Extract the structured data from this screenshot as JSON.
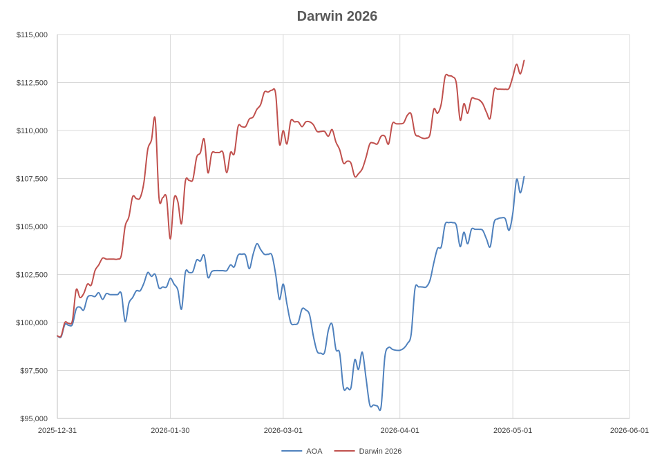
{
  "chart_data": {
    "type": "line",
    "title": "Darwin 2026",
    "xlabel": "",
    "ylabel": "",
    "xlim": [
      "2025-12-31",
      "2026-06-01"
    ],
    "ylim": [
      95000,
      115000
    ],
    "x_ticks": [
      "2025-12-31",
      "2026-01-30",
      "2026-03-01",
      "2026-04-01",
      "2026-05-01",
      "2026-06-01"
    ],
    "y_ticks": [
      "$95,000",
      "$97,500",
      "$100,000",
      "$102,500",
      "$105,000",
      "$107,500",
      "$110,000",
      "$112,500",
      "$115,000"
    ],
    "y_tick_values": [
      95000,
      97500,
      100000,
      102500,
      105000,
      107500,
      110000,
      112500,
      115000
    ],
    "grid": true,
    "legend_position": "bottom",
    "series": [
      {
        "name": "AOA",
        "color": "#4f81bd",
        "points": [
          [
            "2025-12-31",
            99300
          ],
          [
            "2026-01-01",
            99250
          ],
          [
            "2026-01-02",
            99900
          ],
          [
            "2026-01-03",
            99850
          ],
          [
            "2026-01-04",
            99900
          ],
          [
            "2026-01-05",
            100700
          ],
          [
            "2026-01-06",
            100800
          ],
          [
            "2026-01-07",
            100650
          ],
          [
            "2026-01-08",
            101300
          ],
          [
            "2026-01-09",
            101400
          ],
          [
            "2026-01-10",
            101350
          ],
          [
            "2026-01-11",
            101550
          ],
          [
            "2026-01-12",
            101200
          ],
          [
            "2026-01-13",
            101500
          ],
          [
            "2026-01-14",
            101450
          ],
          [
            "2026-01-15",
            101450
          ],
          [
            "2026-01-16",
            101450
          ],
          [
            "2026-01-17",
            101500
          ],
          [
            "2026-01-18",
            100050
          ],
          [
            "2026-01-19",
            101000
          ],
          [
            "2026-01-20",
            101300
          ],
          [
            "2026-01-21",
            101650
          ],
          [
            "2026-01-22",
            101650
          ],
          [
            "2026-01-23",
            102050
          ],
          [
            "2026-01-24",
            102600
          ],
          [
            "2026-01-25",
            102400
          ],
          [
            "2026-01-26",
            102500
          ],
          [
            "2026-01-27",
            101800
          ],
          [
            "2026-01-28",
            101850
          ],
          [
            "2026-01-29",
            101850
          ],
          [
            "2026-01-30",
            102300
          ],
          [
            "2026-01-31",
            102000
          ],
          [
            "2026-02-01",
            101700
          ],
          [
            "2026-02-02",
            100700
          ],
          [
            "2026-02-03",
            102600
          ],
          [
            "2026-02-04",
            102600
          ],
          [
            "2026-02-05",
            102650
          ],
          [
            "2026-02-06",
            103250
          ],
          [
            "2026-02-07",
            103200
          ],
          [
            "2026-02-08",
            103500
          ],
          [
            "2026-02-09",
            102350
          ],
          [
            "2026-02-10",
            102650
          ],
          [
            "2026-02-11",
            102700
          ],
          [
            "2026-02-12",
            102700
          ],
          [
            "2026-02-13",
            102700
          ],
          [
            "2026-02-14",
            102700
          ],
          [
            "2026-02-15",
            103000
          ],
          [
            "2026-02-16",
            102900
          ],
          [
            "2026-02-17",
            103500
          ],
          [
            "2026-02-18",
            103550
          ],
          [
            "2026-02-19",
            103500
          ],
          [
            "2026-02-20",
            102800
          ],
          [
            "2026-02-21",
            103550
          ],
          [
            "2026-02-22",
            104100
          ],
          [
            "2026-02-23",
            103800
          ],
          [
            "2026-02-24",
            103550
          ],
          [
            "2026-02-25",
            103550
          ],
          [
            "2026-02-26",
            103500
          ],
          [
            "2026-02-27",
            102500
          ],
          [
            "2026-02-28",
            101200
          ],
          [
            "2026-03-01",
            102000
          ],
          [
            "2026-03-02",
            100950
          ],
          [
            "2026-03-03",
            100000
          ],
          [
            "2026-03-04",
            99900
          ],
          [
            "2026-03-05",
            100000
          ],
          [
            "2026-03-06",
            100700
          ],
          [
            "2026-03-07",
            100650
          ],
          [
            "2026-03-08",
            100400
          ],
          [
            "2026-03-09",
            99300
          ],
          [
            "2026-03-10",
            98500
          ],
          [
            "2026-03-11",
            98400
          ],
          [
            "2026-03-12",
            98450
          ],
          [
            "2026-03-13",
            99600
          ],
          [
            "2026-03-14",
            99900
          ],
          [
            "2026-03-15",
            98600
          ],
          [
            "2026-03-16",
            98400
          ],
          [
            "2026-03-17",
            96600
          ],
          [
            "2026-03-18",
            96600
          ],
          [
            "2026-03-19",
            96600
          ],
          [
            "2026-03-20",
            98050
          ],
          [
            "2026-03-21",
            97550
          ],
          [
            "2026-03-22",
            98450
          ],
          [
            "2026-03-23",
            97100
          ],
          [
            "2026-03-24",
            95700
          ],
          [
            "2026-03-25",
            95700
          ],
          [
            "2026-03-26",
            95650
          ],
          [
            "2026-03-27",
            95600
          ],
          [
            "2026-03-28",
            98200
          ],
          [
            "2026-03-29",
            98700
          ],
          [
            "2026-03-30",
            98600
          ],
          [
            "2026-03-31",
            98550
          ],
          [
            "2026-04-01",
            98550
          ],
          [
            "2026-04-02",
            98650
          ],
          [
            "2026-04-03",
            98900
          ],
          [
            "2026-04-04",
            99400
          ],
          [
            "2026-04-05",
            101750
          ],
          [
            "2026-04-06",
            101850
          ],
          [
            "2026-04-07",
            101850
          ],
          [
            "2026-04-08",
            101850
          ],
          [
            "2026-04-09",
            102200
          ],
          [
            "2026-04-10",
            103100
          ],
          [
            "2026-04-11",
            103850
          ],
          [
            "2026-04-12",
            103950
          ],
          [
            "2026-04-13",
            105100
          ],
          [
            "2026-04-14",
            105200
          ],
          [
            "2026-04-15",
            105200
          ],
          [
            "2026-04-16",
            105050
          ],
          [
            "2026-04-17",
            103950
          ],
          [
            "2026-04-18",
            104700
          ],
          [
            "2026-04-19",
            104100
          ],
          [
            "2026-04-20",
            104850
          ],
          [
            "2026-04-21",
            104850
          ],
          [
            "2026-04-22",
            104850
          ],
          [
            "2026-04-23",
            104800
          ],
          [
            "2026-04-24",
            104350
          ],
          [
            "2026-04-25",
            103950
          ],
          [
            "2026-04-26",
            105200
          ],
          [
            "2026-04-27",
            105400
          ],
          [
            "2026-04-28",
            105450
          ],
          [
            "2026-04-29",
            105400
          ],
          [
            "2026-04-30",
            104800
          ],
          [
            "2026-05-01",
            105700
          ],
          [
            "2026-05-02",
            107450
          ],
          [
            "2026-05-03",
            106750
          ],
          [
            "2026-05-04",
            107600
          ]
        ]
      },
      {
        "name": "Darwin 2026",
        "color": "#c0504d",
        "points": [
          [
            "2025-12-31",
            99300
          ],
          [
            "2026-01-01",
            99300
          ],
          [
            "2026-01-02",
            100000
          ],
          [
            "2026-01-03",
            99950
          ],
          [
            "2026-01-04",
            100100
          ],
          [
            "2026-01-05",
            101700
          ],
          [
            "2026-01-06",
            101300
          ],
          [
            "2026-01-07",
            101500
          ],
          [
            "2026-01-08",
            102000
          ],
          [
            "2026-01-09",
            101950
          ],
          [
            "2026-01-10",
            102700
          ],
          [
            "2026-01-11",
            103000
          ],
          [
            "2026-01-12",
            103350
          ],
          [
            "2026-01-13",
            103300
          ],
          [
            "2026-01-14",
            103300
          ],
          [
            "2026-01-15",
            103300
          ],
          [
            "2026-01-16",
            103300
          ],
          [
            "2026-01-17",
            103500
          ],
          [
            "2026-01-18",
            105000
          ],
          [
            "2026-01-19",
            105500
          ],
          [
            "2026-01-20",
            106550
          ],
          [
            "2026-01-21",
            106450
          ],
          [
            "2026-01-22",
            106500
          ],
          [
            "2026-01-23",
            107300
          ],
          [
            "2026-01-24",
            109000
          ],
          [
            "2026-01-25",
            109500
          ],
          [
            "2026-01-26",
            110600
          ],
          [
            "2026-01-27",
            106500
          ],
          [
            "2026-01-28",
            106500
          ],
          [
            "2026-01-29",
            106500
          ],
          [
            "2026-01-30",
            104350
          ],
          [
            "2026-01-31",
            106450
          ],
          [
            "2026-02-01",
            106300
          ],
          [
            "2026-02-02",
            105150
          ],
          [
            "2026-02-03",
            107350
          ],
          [
            "2026-02-04",
            107400
          ],
          [
            "2026-02-05",
            107450
          ],
          [
            "2026-02-06",
            108600
          ],
          [
            "2026-02-07",
            108850
          ],
          [
            "2026-02-08",
            109550
          ],
          [
            "2026-02-09",
            107800
          ],
          [
            "2026-02-10",
            108800
          ],
          [
            "2026-02-11",
            108850
          ],
          [
            "2026-02-12",
            108850
          ],
          [
            "2026-02-13",
            108850
          ],
          [
            "2026-02-14",
            107800
          ],
          [
            "2026-02-15",
            108850
          ],
          [
            "2026-02-16",
            108800
          ],
          [
            "2026-02-17",
            110200
          ],
          [
            "2026-02-18",
            110200
          ],
          [
            "2026-02-19",
            110200
          ],
          [
            "2026-02-20",
            110600
          ],
          [
            "2026-02-21",
            110700
          ],
          [
            "2026-02-22",
            111100
          ],
          [
            "2026-02-23",
            111350
          ],
          [
            "2026-02-24",
            112000
          ],
          [
            "2026-02-25",
            112000
          ],
          [
            "2026-02-26",
            112100
          ],
          [
            "2026-02-27",
            111900
          ],
          [
            "2026-02-28",
            109300
          ],
          [
            "2026-03-01",
            110000
          ],
          [
            "2026-03-02",
            109300
          ],
          [
            "2026-03-03",
            110500
          ],
          [
            "2026-03-04",
            110450
          ],
          [
            "2026-03-05",
            110450
          ],
          [
            "2026-03-06",
            110200
          ],
          [
            "2026-03-07",
            110450
          ],
          [
            "2026-03-08",
            110450
          ],
          [
            "2026-03-09",
            110300
          ],
          [
            "2026-03-10",
            109950
          ],
          [
            "2026-03-11",
            109950
          ],
          [
            "2026-03-12",
            109950
          ],
          [
            "2026-03-13",
            109700
          ],
          [
            "2026-03-14",
            110050
          ],
          [
            "2026-03-15",
            109400
          ],
          [
            "2026-03-16",
            109000
          ],
          [
            "2026-03-17",
            108300
          ],
          [
            "2026-03-18",
            108400
          ],
          [
            "2026-03-19",
            108300
          ],
          [
            "2026-03-20",
            107600
          ],
          [
            "2026-03-21",
            107750
          ],
          [
            "2026-03-22",
            108000
          ],
          [
            "2026-03-23",
            108600
          ],
          [
            "2026-03-24",
            109300
          ],
          [
            "2026-03-25",
            109350
          ],
          [
            "2026-03-26",
            109300
          ],
          [
            "2026-03-27",
            109700
          ],
          [
            "2026-03-28",
            109700
          ],
          [
            "2026-03-29",
            109300
          ],
          [
            "2026-03-30",
            110350
          ],
          [
            "2026-03-31",
            110350
          ],
          [
            "2026-04-01",
            110350
          ],
          [
            "2026-04-02",
            110400
          ],
          [
            "2026-04-03",
            110800
          ],
          [
            "2026-04-04",
            110850
          ],
          [
            "2026-04-05",
            109850
          ],
          [
            "2026-04-06",
            109700
          ],
          [
            "2026-04-07",
            109600
          ],
          [
            "2026-04-08",
            109600
          ],
          [
            "2026-04-09",
            109800
          ],
          [
            "2026-04-10",
            111100
          ],
          [
            "2026-04-11",
            110900
          ],
          [
            "2026-04-12",
            111400
          ],
          [
            "2026-04-13",
            112800
          ],
          [
            "2026-04-14",
            112850
          ],
          [
            "2026-04-15",
            112800
          ],
          [
            "2026-04-16",
            112450
          ],
          [
            "2026-04-17",
            110550
          ],
          [
            "2026-04-18",
            111400
          ],
          [
            "2026-04-19",
            110900
          ],
          [
            "2026-04-20",
            111650
          ],
          [
            "2026-04-21",
            111650
          ],
          [
            "2026-04-22",
            111600
          ],
          [
            "2026-04-23",
            111400
          ],
          [
            "2026-04-24",
            110950
          ],
          [
            "2026-04-25",
            110650
          ],
          [
            "2026-04-26",
            112100
          ],
          [
            "2026-04-27",
            112150
          ],
          [
            "2026-04-28",
            112150
          ],
          [
            "2026-04-29",
            112150
          ],
          [
            "2026-04-30",
            112200
          ],
          [
            "2026-05-01",
            112800
          ],
          [
            "2026-05-02",
            113450
          ],
          [
            "2026-05-03",
            112950
          ],
          [
            "2026-05-04",
            113650
          ]
        ]
      }
    ]
  }
}
